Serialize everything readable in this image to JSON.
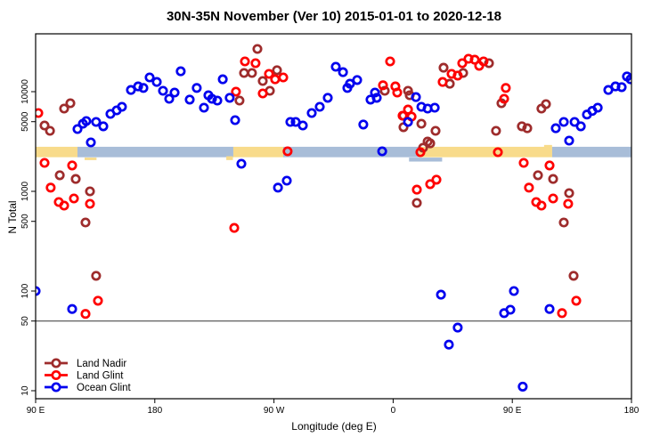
{
  "title": "30N-35N November (Ver 10)   2015-01-01 to 2020-12-18",
  "chart_data": {
    "type": "scatter",
    "title": "30N-35N November (Ver 10)   2015-01-01 to 2020-12-18",
    "xlabel": "Longitude (deg E)",
    "ylabel": "N Total",
    "x_axis": {
      "note": "longitude axis wraps: spans 450 deg starting at 90E",
      "range": [
        0,
        450
      ],
      "ticks": [
        {
          "pos": 0,
          "label": "90 E"
        },
        {
          "pos": 90,
          "label": "180"
        },
        {
          "pos": 180,
          "label": "90 W"
        },
        {
          "pos": 270,
          "label": "0"
        },
        {
          "pos": 360,
          "label": "90 E"
        },
        {
          "pos": 450,
          "label": "180"
        }
      ]
    },
    "y_axis": {
      "scale": "log",
      "range": [
        10,
        40000
      ],
      "ticks": [
        10,
        50,
        100,
        500,
        1000,
        5000,
        10000
      ]
    },
    "threshold_line": 50,
    "map_band": {
      "value_range": [
        2200,
        2800
      ],
      "land_color": "#f8db8b",
      "ocean_color": "#a8bdd8",
      "segments": [
        {
          "from": 0,
          "to": 31.6,
          "type": "land"
        },
        {
          "from": 31.6,
          "to": 149.3,
          "type": "ocean"
        },
        {
          "from": 149.3,
          "to": 187.0,
          "type": "land"
        },
        {
          "from": 187.0,
          "to": 289.2,
          "type": "ocean"
        },
        {
          "from": 289.2,
          "to": 390.1,
          "type": "land"
        },
        {
          "from": 390.1,
          "to": 450,
          "type": "ocean"
        }
      ],
      "fringes": [
        {
          "from": 37,
          "to": 46,
          "type": "land",
          "v_from": 2180,
          "v_to": 2060
        },
        {
          "from": 144,
          "to": 149,
          "type": "land",
          "v_from": 2250,
          "v_to": 2060
        },
        {
          "from": 282,
          "to": 307,
          "type": "ocean",
          "v_from": 2180,
          "v_to": 1990
        },
        {
          "from": 384,
          "to": 390,
          "type": "land",
          "v_from": 2920,
          "v_to": 2790
        }
      ]
    },
    "series": [
      {
        "name": "Land Nadir",
        "color": "#9e2c2c",
        "points": [
          [
            6.7,
            4580
          ],
          [
            10.8,
            4050
          ],
          [
            21.5,
            6760
          ],
          [
            26.2,
            7660
          ],
          [
            154,
            8150
          ],
          [
            167.5,
            26800
          ],
          [
            157.4,
            15400
          ],
          [
            163.4,
            15400
          ],
          [
            171.5,
            12800
          ],
          [
            182.3,
            16400
          ],
          [
            176.9,
            10200
          ],
          [
            263.7,
            10200
          ],
          [
            281.2,
            10200
          ],
          [
            282.5,
            9210
          ],
          [
            277.8,
            5740
          ],
          [
            291.3,
            4770
          ],
          [
            277.8,
            4400
          ],
          [
            302,
            4050
          ],
          [
            296,
            3160
          ],
          [
            351.8,
            7660
          ],
          [
            347.7,
            4050
          ],
          [
            312.8,
            12000
          ],
          [
            322.9,
            15400
          ],
          [
            308.1,
            17400
          ],
          [
            342.4,
            19300
          ],
          [
            292.6,
            2740
          ],
          [
            298,
            3030
          ],
          [
            382,
            6760
          ],
          [
            385.4,
            7500
          ],
          [
            367.2,
            4490
          ],
          [
            371.3,
            4300
          ],
          [
            18.2,
            1450
          ],
          [
            30.3,
            1330
          ],
          [
            41,
            1000
          ],
          [
            37.7,
            487
          ],
          [
            45.7,
            142
          ],
          [
            287.9,
            766
          ],
          [
            379.4,
            1450
          ],
          [
            390.8,
            1330
          ],
          [
            402.9,
            960
          ],
          [
            398.9,
            487
          ],
          [
            406.3,
            142
          ]
        ]
      },
      {
        "name": "Land Glint",
        "color": "#ff0000",
        "points": [
          [
            2,
            6110
          ],
          [
            151.3,
            10000
          ],
          [
            158.1,
            20100
          ],
          [
            166.1,
            19300
          ],
          [
            176.2,
            15100
          ],
          [
            180.9,
            13300
          ],
          [
            187,
            13900
          ],
          [
            171.5,
            9600
          ],
          [
            190.3,
            2520
          ],
          [
            267.7,
            20100
          ],
          [
            262.3,
            11600
          ],
          [
            271.7,
            11300
          ],
          [
            273.1,
            9800
          ],
          [
            277.1,
            5740
          ],
          [
            281.2,
            6620
          ],
          [
            283.9,
            5620
          ],
          [
            307.4,
            12500
          ],
          [
            314.1,
            15100
          ],
          [
            318.8,
            14500
          ],
          [
            322.2,
            19300
          ],
          [
            326.9,
            21400
          ],
          [
            331.6,
            20900
          ],
          [
            335,
            18200
          ],
          [
            338.3,
            20100
          ],
          [
            355.1,
            10900
          ],
          [
            353.8,
            8490
          ],
          [
            290.6,
            2470
          ],
          [
            349.1,
            2470
          ],
          [
            6.7,
            1930
          ],
          [
            27.6,
            1820
          ],
          [
            11.4,
            1090
          ],
          [
            28.9,
            849
          ],
          [
            17.5,
            782
          ],
          [
            21.5,
            719
          ],
          [
            41,
            750
          ],
          [
            150,
            430
          ],
          [
            298,
            1180
          ],
          [
            302.7,
            1310
          ],
          [
            287.9,
            1040
          ],
          [
            368.6,
            1930
          ],
          [
            388.1,
            1820
          ],
          [
            372.6,
            1090
          ],
          [
            390.8,
            849
          ],
          [
            378,
            782
          ],
          [
            382,
            719
          ],
          [
            402.2,
            750
          ],
          [
            47.1,
            80
          ],
          [
            37.7,
            59
          ],
          [
            408.3,
            80
          ],
          [
            397.5,
            60
          ]
        ]
      },
      {
        "name": "Ocean Glint",
        "color": "#0000ee",
        "points": [
          [
            31.6,
            4220
          ],
          [
            35.7,
            4770
          ],
          [
            38.3,
            5070
          ],
          [
            41.7,
            3100
          ],
          [
            45.7,
            4970
          ],
          [
            51.1,
            4490
          ],
          [
            56.5,
            5980
          ],
          [
            61.2,
            6500
          ],
          [
            65.2,
            7050
          ],
          [
            72,
            10400
          ],
          [
            77.4,
            11300
          ],
          [
            81.4,
            10900
          ],
          [
            86.1,
            13900
          ],
          [
            91.5,
            12500
          ],
          [
            96.2,
            10200
          ],
          [
            100.9,
            8490
          ],
          [
            104.9,
            9800
          ],
          [
            109.6,
            16000
          ],
          [
            116.4,
            8320
          ],
          [
            121.7,
            10900
          ],
          [
            127.1,
            6900
          ],
          [
            130.5,
            9200
          ],
          [
            133.2,
            8490
          ],
          [
            137.2,
            8150
          ],
          [
            141.3,
            13300
          ],
          [
            146.6,
            8670
          ],
          [
            150.7,
            5180
          ],
          [
            192.4,
            4970
          ],
          [
            196.4,
            4970
          ],
          [
            201.8,
            4580
          ],
          [
            208.5,
            6110
          ],
          [
            214.6,
            7050
          ],
          [
            220.6,
            8670
          ],
          [
            226.7,
            17800
          ],
          [
            232.1,
            15700
          ],
          [
            237.4,
            12000
          ],
          [
            242.8,
            13100
          ],
          [
            235.4,
            10900
          ],
          [
            252.9,
            8320
          ],
          [
            256.3,
            9800
          ],
          [
            257.6,
            8670
          ],
          [
            287.2,
            8830
          ],
          [
            291.3,
            7050
          ],
          [
            296,
            6760
          ],
          [
            301.4,
            6900
          ],
          [
            247.5,
            4680
          ],
          [
            281.2,
            4970
          ],
          [
            261.7,
            2520
          ],
          [
            155.4,
            1890
          ],
          [
            189.7,
            1280
          ],
          [
            183,
            1090
          ],
          [
            392.8,
            4300
          ],
          [
            398.9,
            4970
          ],
          [
            407,
            4970
          ],
          [
            411.7,
            4490
          ],
          [
            402.9,
            3230
          ],
          [
            416.4,
            5890
          ],
          [
            420.4,
            6410
          ],
          [
            424.5,
            6900
          ],
          [
            432.5,
            10400
          ],
          [
            437.9,
            11300
          ],
          [
            442.6,
            11100
          ],
          [
            446.6,
            14200
          ],
          [
            449.3,
            13300
          ],
          [
            0,
            100
          ],
          [
            27.6,
            66
          ],
          [
            361.2,
            100
          ],
          [
            353.8,
            60
          ],
          [
            358.5,
            65
          ],
          [
            388.1,
            66
          ],
          [
            318.8,
            43
          ],
          [
            312.1,
            29
          ],
          [
            306.1,
            92
          ],
          [
            367.9,
            11
          ]
        ]
      }
    ],
    "legend": {
      "position": "bottom-left",
      "items": [
        "Land Nadir",
        "Land Glint",
        "Ocean Glint"
      ]
    }
  }
}
